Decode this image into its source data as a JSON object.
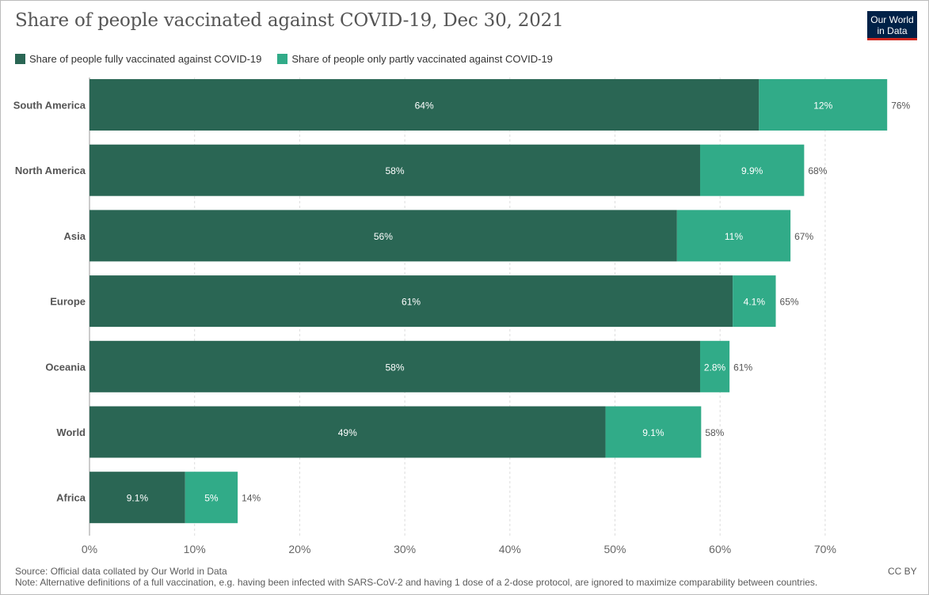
{
  "header": {
    "title": "Share of people vaccinated against COVID-19, Dec 30, 2021",
    "logo_line1": "Our World",
    "logo_line2": "in Data"
  },
  "colors": {
    "fully": "#2a6654",
    "partly": "#31ab88",
    "grid": "#dddddd",
    "text": "#555555"
  },
  "chart_data": {
    "type": "bar",
    "orientation": "horizontal",
    "stacked": true,
    "title": "Share of people vaccinated against COVID-19, Dec 30, 2021",
    "categories": [
      "South America",
      "North America",
      "Asia",
      "Europe",
      "Oceania",
      "World",
      "Africa"
    ],
    "series": [
      {
        "name": "Share of people fully vaccinated against COVID-19",
        "values": [
          63.7,
          58.1,
          55.9,
          61.2,
          58.1,
          49.1,
          9.1
        ],
        "labels": [
          "64%",
          "58%",
          "56%",
          "61%",
          "58%",
          "49%",
          "9.1%"
        ]
      },
      {
        "name": "Share of people only partly vaccinated against COVID-19",
        "values": [
          12.2,
          9.9,
          10.8,
          4.1,
          2.8,
          9.1,
          5.0
        ],
        "labels": [
          "12%",
          "9.9%",
          "11%",
          "4.1%",
          "2.8%",
          "9.1%",
          "5%"
        ]
      }
    ],
    "totals": [
      "76%",
      "68%",
      "67%",
      "65%",
      "61%",
      "58%",
      "14%"
    ],
    "x_ticks": [
      0,
      10,
      20,
      30,
      40,
      50,
      60,
      70
    ],
    "x_tick_labels": [
      "0%",
      "10%",
      "20%",
      "30%",
      "40%",
      "50%",
      "60%",
      "70%"
    ],
    "xlim": [
      0,
      76
    ],
    "legend_position": "top-left",
    "grid": true
  },
  "footer": {
    "source": "Source: Official data collated by Our World in Data",
    "note": "Note: Alternative definitions of a full vaccination, e.g. having been infected with SARS-CoV-2 and having 1 dose of a 2-dose protocol, are ignored to maximize comparability between countries.",
    "license": "CC BY"
  }
}
